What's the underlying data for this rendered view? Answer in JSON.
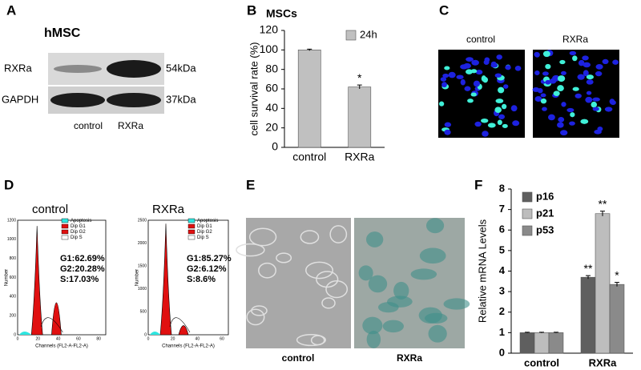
{
  "panels": {
    "A": {
      "letter": "A",
      "title": "hMSC",
      "bands": [
        "RXRa",
        "GAPDH"
      ],
      "sizes": [
        "54kDa",
        "37kDa"
      ],
      "lanes": [
        "control",
        "RXRa"
      ]
    },
    "C": {
      "letter": "C",
      "images": [
        "control",
        "RXRa"
      ]
    },
    "D": {
      "letter": "D",
      "plots": [
        {
          "title": "control",
          "legend": [
            "Apoptosis",
            "Dip G1",
            "Dip G2",
            "Dip S"
          ],
          "stats": [
            "G1:62.69%",
            "G2:20.28%",
            "S:17.03%"
          ],
          "xlabel": "Channels (FL2-A-FL2-A)",
          "ylabel": "Number",
          "xticks": [
            "0",
            "20",
            "40",
            "60",
            "80"
          ],
          "yticks": [
            "0",
            "200",
            "400",
            "600",
            "800",
            "1000",
            "1200"
          ]
        },
        {
          "title": "RXRa",
          "legend": [
            "Apoptosis",
            "Dip G1",
            "Dip G2",
            "Dip S"
          ],
          "stats": [
            "G1:85.27%",
            "G2:6.12%",
            "S:8.6%"
          ],
          "xlabel": "Channels (FL2-A-FL2-A)",
          "ylabel": "Number",
          "xticks": [
            "0",
            "20",
            "40",
            "60"
          ],
          "yticks": [
            "0",
            "500",
            "1000",
            "1500",
            "2000",
            "2500"
          ]
        }
      ]
    },
    "E": {
      "letter": "E",
      "images": [
        "control",
        "RXRa"
      ]
    }
  },
  "chart_data": [
    {
      "type": "bar",
      "panel": "B",
      "title": "MSCs",
      "y_label": "cell survival rate  (%)",
      "categories": [
        "control",
        "RXRa"
      ],
      "series": [
        {
          "name": "24h",
          "color": "#c0c0c0",
          "values": [
            100,
            62
          ],
          "errors": [
            0.8,
            2
          ],
          "significance": [
            null,
            "*"
          ]
        }
      ],
      "ylim": [
        0,
        120
      ],
      "yticks": [
        0,
        20,
        40,
        60,
        80,
        100,
        120
      ],
      "grid": false
    },
    {
      "type": "bar",
      "panel": "F",
      "y_label": "Relative mRNA Levels",
      "categories": [
        "control",
        "RXRa"
      ],
      "series": [
        {
          "name": "p16",
          "color": "#5f5f5f",
          "values": [
            1,
            3.7
          ],
          "errors": [
            0.02,
            0.08
          ],
          "significance": [
            null,
            "**"
          ]
        },
        {
          "name": "p21",
          "color": "#bdbdbd",
          "values": [
            1,
            6.8
          ],
          "errors": [
            0.02,
            0.12
          ],
          "significance": [
            null,
            "**"
          ]
        },
        {
          "name": "p53",
          "color": "#8a8a8a",
          "values": [
            1,
            3.35
          ],
          "errors": [
            0.02,
            0.1
          ],
          "significance": [
            null,
            "*"
          ]
        }
      ],
      "ylim": [
        0,
        8
      ],
      "yticks": [
        0,
        1,
        2,
        3,
        4,
        5,
        6,
        7,
        8
      ],
      "grid": false
    }
  ]
}
